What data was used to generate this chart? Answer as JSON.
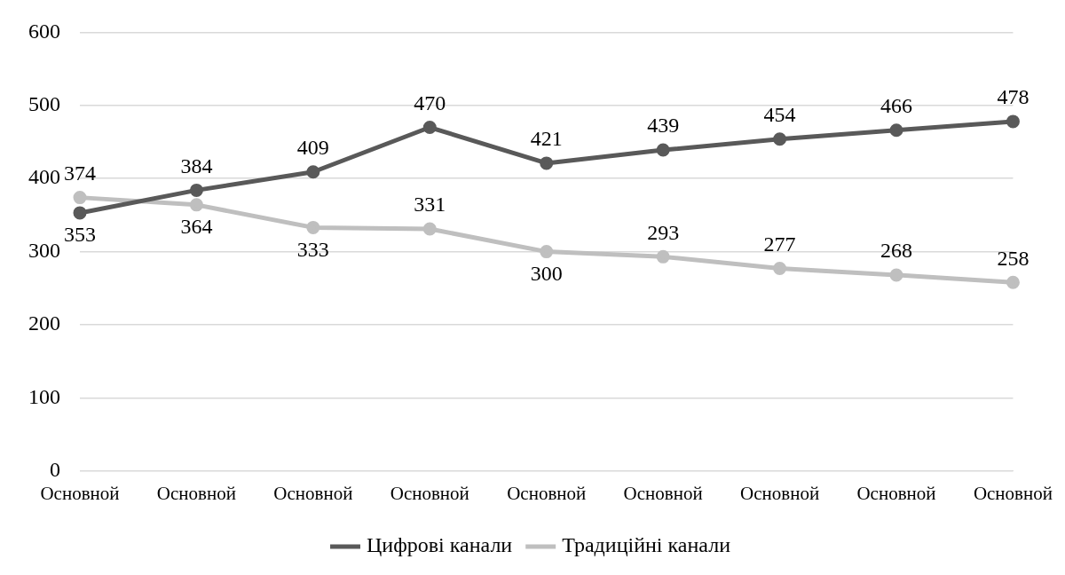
{
  "chart_data": {
    "type": "line",
    "categories": [
      "Основной",
      "Основной",
      "Основной",
      "Основной",
      "Основной",
      "Основной",
      "Основной",
      "Основной",
      "Основной"
    ],
    "series": [
      {
        "name": "Цифрові канали",
        "color": "#595959",
        "values": [
          353,
          384,
          409,
          470,
          421,
          439,
          454,
          466,
          478
        ]
      },
      {
        "name": "Традиційні канали",
        "color": "#bfbfbf",
        "values": [
          374,
          364,
          333,
          331,
          300,
          293,
          277,
          268,
          258
        ]
      }
    ],
    "ylim": [
      0,
      600
    ],
    "yticks": [
      0,
      100,
      200,
      300,
      400,
      500,
      600
    ],
    "grid": "y",
    "legend": "bottom",
    "marker": "circle",
    "line_style": "solid",
    "data_labels": true
  }
}
